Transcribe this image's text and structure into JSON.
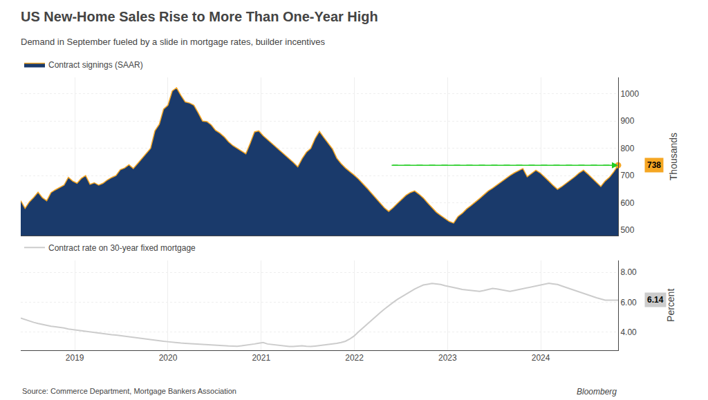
{
  "chart_data": [
    {
      "type": "area",
      "title": "US New-Home Sales Rise to More Than One-Year High",
      "subtitle": "Demand in September fueled by a slide in mortgage rates, builder incentives",
      "x": [
        2018.42,
        2018.4664,
        2018.5129,
        2018.5593,
        2018.6058,
        2018.6522,
        2018.6987,
        2018.7451,
        2018.7916,
        2018.838,
        2018.8845,
        2018.9309,
        2018.9774,
        2019.0238,
        2019.0703,
        2019.1167,
        2019.1632,
        2019.2096,
        2019.2561,
        2019.3025,
        2019.349,
        2019.3954,
        2019.4419,
        2019.4883,
        2019.5348,
        2019.5812,
        2019.6277,
        2019.6741,
        2019.7206,
        2019.767,
        2019.8135,
        2019.8599,
        2019.9064,
        2019.9528,
        2019.9993,
        2020.0457,
        2020.0922,
        2020.1386,
        2020.1851,
        2020.2315,
        2020.278,
        2020.3244,
        2020.3709,
        2020.4173,
        2020.4638,
        2020.5102,
        2020.5567,
        2020.6031,
        2020.6496,
        2020.696,
        2020.7425,
        2020.7889,
        2020.8354,
        2020.8818,
        2020.9283,
        2020.9747,
        2021.0212,
        2021.0676,
        2021.1141,
        2021.1605,
        2021.207,
        2021.2534,
        2021.2999,
        2021.3463,
        2021.3928,
        2021.4392,
        2021.4857,
        2021.5321,
        2021.5786,
        2021.625,
        2021.6714,
        2021.7179,
        2021.7643,
        2021.8108,
        2021.8572,
        2021.9037,
        2021.9501,
        2021.9966,
        2022.043,
        2022.0895,
        2022.1359,
        2022.1824,
        2022.2288,
        2022.2753,
        2022.3217,
        2022.3682,
        2022.4146,
        2022.4611,
        2022.5075,
        2022.554,
        2022.6004,
        2022.6469,
        2022.6933,
        2022.7398,
        2022.7862,
        2022.8327,
        2022.8791,
        2022.9256,
        2022.972,
        2023.0185,
        2023.0649,
        2023.1114,
        2023.1578,
        2023.2043,
        2023.2507,
        2023.2972,
        2023.3436,
        2023.3901,
        2023.4365,
        2023.483,
        2023.5294,
        2023.5759,
        2023.6223,
        2023.6688,
        2023.7152,
        2023.7617,
        2023.8081,
        2023.8546,
        2023.901,
        2023.9475,
        2023.9939,
        2024.0404,
        2024.0868,
        2024.1333,
        2024.1797,
        2024.2262,
        2024.2726,
        2024.3191,
        2024.3655,
        2024.412,
        2024.4584,
        2024.5049,
        2024.5513,
        2024.5978,
        2024.6442,
        2024.6907,
        2024.7371,
        2024.7836,
        2024.83
      ],
      "series": [
        {
          "name": "Contract signings (SAAR)",
          "color": "#f5a623",
          "fill_color": "#1a3a6b",
          "values": [
            608,
            580,
            604,
            620,
            639,
            619,
            608,
            638,
            648,
            656,
            665,
            694,
            680,
            672,
            690,
            700,
            668,
            674,
            665,
            672,
            684,
            693,
            700,
            722,
            728,
            740,
            726,
            744,
            762,
            782,
            800,
            864,
            888,
            944,
            958,
            1010,
            1022,
            994,
            970,
            966,
            958,
            930,
            900,
            898,
            886,
            866,
            856,
            842,
            824,
            810,
            800,
            792,
            780,
            818,
            860,
            864,
            846,
            832,
            818,
            804,
            792,
            778,
            762,
            748,
            732,
            762,
            786,
            800,
            836,
            862,
            840,
            818,
            798,
            764,
            744,
            728,
            716,
            702,
            688,
            672,
            654,
            636,
            618,
            600,
            582,
            569,
            582,
            598,
            614,
            628,
            638,
            644,
            632,
            618,
            600,
            582,
            566,
            554,
            542,
            532,
            526,
            550,
            562,
            578,
            590,
            602,
            616,
            630,
            644,
            654,
            666,
            678,
            690,
            700,
            710,
            718,
            726,
            696,
            708,
            720,
            710,
            696,
            680,
            664,
            650,
            660,
            672,
            682,
            696,
            710,
            720,
            706,
            690,
            674,
            660,
            680,
            694,
            714,
            738
          ]
        }
      ],
      "xlim": [
        2018.42,
        2024.83
      ],
      "xticks": [
        2019,
        2020,
        2021,
        2022,
        2023,
        2024
      ],
      "ylim": [
        480,
        1060
      ],
      "yticks": [
        500,
        600,
        700,
        800,
        900,
        1000
      ],
      "ylabel": "Thousands",
      "grid": true,
      "legend": "top left",
      "tick_labels": "y",
      "annotations": [
        {
          "text": "738",
          "x": 2024.83,
          "y": 738,
          "arrow": {
            "from_x": 2022.4,
            "color": "#22cc22"
          }
        }
      ]
    },
    {
      "type": "line",
      "x": [
        2018.42,
        2018.4664,
        2018.5129,
        2018.5593,
        2018.6058,
        2018.6522,
        2018.6987,
        2018.7451,
        2018.7916,
        2018.838,
        2018.8845,
        2018.9309,
        2018.9774,
        2019.0238,
        2019.0703,
        2019.1167,
        2019.1632,
        2019.2096,
        2019.2561,
        2019.3025,
        2019.349,
        2019.3954,
        2019.4419,
        2019.4883,
        2019.5348,
        2019.5812,
        2019.6277,
        2019.6741,
        2019.7206,
        2019.767,
        2019.8135,
        2019.8599,
        2019.9064,
        2019.9528,
        2019.9993,
        2020.0457,
        2020.0922,
        2020.1386,
        2020.1851,
        2020.2315,
        2020.278,
        2020.3244,
        2020.3709,
        2020.4173,
        2020.4638,
        2020.5102,
        2020.5567,
        2020.6031,
        2020.6496,
        2020.696,
        2020.7425,
        2020.7889,
        2020.8354,
        2020.8818,
        2020.9283,
        2020.9747,
        2021.0212,
        2021.0676,
        2021.1141,
        2021.1605,
        2021.207,
        2021.2534,
        2021.2999,
        2021.3463,
        2021.3928,
        2021.4392,
        2021.4857,
        2021.5321,
        2021.5786,
        2021.625,
        2021.6714,
        2021.7179,
        2021.7643,
        2021.8108,
        2021.8572,
        2021.9037,
        2021.9501,
        2021.9966,
        2022.043,
        2022.0895,
        2022.1359,
        2022.1824,
        2022.2288,
        2022.2753,
        2022.3217,
        2022.3682,
        2022.4146,
        2022.4611,
        2022.5075,
        2022.554,
        2022.6004,
        2022.6469,
        2022.6933,
        2022.7398,
        2022.7862,
        2022.8327,
        2022.8791,
        2022.9256,
        2022.972,
        2023.0185,
        2023.0649,
        2023.1114,
        2023.1578,
        2023.2043,
        2023.2507,
        2023.2972,
        2023.3436,
        2023.3901,
        2023.4365,
        2023.483,
        2023.5294,
        2023.5759,
        2023.6223,
        2023.6688,
        2023.7152,
        2023.7617,
        2023.8081,
        2023.8546,
        2023.901,
        2023.9475,
        2023.9939,
        2024.0404,
        2024.0868,
        2024.1333,
        2024.1797,
        2024.2262,
        2024.2726,
        2024.3191,
        2024.3655,
        2024.412,
        2024.4584,
        2024.5049,
        2024.5513,
        2024.5978,
        2024.6442,
        2024.6907,
        2024.7371,
        2024.7836,
        2024.83
      ],
      "series": [
        {
          "name": "Contract rate on 30-year fixed mortgage",
          "color": "#cccccc",
          "values": [
            4.94,
            4.84,
            4.75,
            4.66,
            4.58,
            4.51,
            4.45,
            4.4,
            4.36,
            4.33,
            4.28,
            4.22,
            4.18,
            4.14,
            4.09,
            4.06,
            4.02,
            3.98,
            3.95,
            3.92,
            3.88,
            3.84,
            3.81,
            3.77,
            3.74,
            3.7,
            3.66,
            3.62,
            3.58,
            3.55,
            3.51,
            3.47,
            3.44,
            3.4,
            3.37,
            3.33,
            3.3,
            3.28,
            3.26,
            3.24,
            3.22,
            3.2,
            3.18,
            3.16,
            3.14,
            3.12,
            3.11,
            3.1,
            3.09,
            3.08,
            3.07,
            3.1,
            3.13,
            3.17,
            3.22,
            3.27,
            3.32,
            3.22,
            3.18,
            3.14,
            3.1,
            3.08,
            3.05,
            3.05,
            3.08,
            3.1,
            3.07,
            3.05,
            3.08,
            3.11,
            3.14,
            3.18,
            3.22,
            3.26,
            3.32,
            3.4,
            3.55,
            3.75,
            4.02,
            4.28,
            4.55,
            4.78,
            5.05,
            5.3,
            5.54,
            5.78,
            5.98,
            6.19,
            6.36,
            6.55,
            6.72,
            6.88,
            7.02,
            7.15,
            7.2,
            7.25,
            7.22,
            7.18,
            7.1,
            7.05,
            6.98,
            6.92,
            6.85,
            6.82,
            6.79,
            6.76,
            6.73,
            6.78,
            6.85,
            6.92,
            6.88,
            6.82,
            6.76,
            6.72,
            6.78,
            6.84,
            6.9,
            6.96,
            7.02,
            7.08,
            7.12,
            7.2,
            7.26,
            7.22,
            7.18,
            7.08,
            6.98,
            6.88,
            6.78,
            6.68,
            6.58,
            6.48,
            6.38,
            6.3,
            6.22,
            6.14,
            6.14,
            6.14,
            6.14
          ]
        }
      ],
      "xlim": [
        2018.42,
        2024.83
      ],
      "xticks": [
        2019,
        2020,
        2021,
        2022,
        2023,
        2024
      ],
      "ylim": [
        2.8,
        8.8
      ],
      "yticks": [
        {
          "value": 4,
          "label": "4.00"
        },
        {
          "value": 6,
          "label": "6.00"
        },
        {
          "value": 8,
          "label": "8.00"
        }
      ],
      "ylabel": "Percent",
      "grid": true,
      "legend": "top left",
      "tick_labels": true,
      "annotations": [
        {
          "text": "6.14",
          "x": 2024.83,
          "y": 6.14
        }
      ],
      "source": "Source: Commerce Department, Mortgage Bankers Association",
      "credit": "Bloomberg"
    }
  ]
}
